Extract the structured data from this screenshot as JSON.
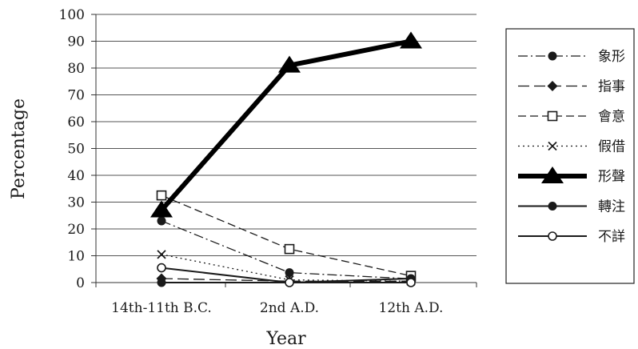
{
  "chart_data": {
    "type": "line",
    "categories": [
      "14th-11th B.C.",
      "2nd A.D.",
      "12th A.D."
    ],
    "xlabel": "Year",
    "ylabel": "Percentage",
    "ylim": [
      0,
      100
    ],
    "yticks": [
      0,
      10,
      20,
      30,
      40,
      50,
      60,
      70,
      80,
      90,
      100
    ],
    "grid": "horizontal",
    "legend_position": "right",
    "series": [
      {
        "name": "象形",
        "values": [
          23,
          3.7,
          1.4
        ],
        "style": "dash-dot",
        "marker": "filled-circle",
        "color": "#1a1a1a"
      },
      {
        "name": "指事",
        "values": [
          1.5,
          0.5,
          0.5
        ],
        "style": "long-dash",
        "marker": "filled-diamond",
        "color": "#1a1a1a"
      },
      {
        "name": "會意",
        "values": [
          32.5,
          12.5,
          2.5
        ],
        "style": "dash",
        "marker": "open-square",
        "color": "#1a1a1a"
      },
      {
        "name": "假借",
        "values": [
          10.5,
          1.0,
          0.5
        ],
        "style": "dotted",
        "marker": "x",
        "color": "#1a1a1a"
      },
      {
        "name": "形聲",
        "values": [
          27,
          81,
          90
        ],
        "style": "thick-solid",
        "marker": "filled-triangle",
        "color": "#000000"
      },
      {
        "name": "轉注",
        "values": [
          0,
          0,
          1.5
        ],
        "style": "solid",
        "marker": "filled-circle",
        "color": "#1a1a1a"
      },
      {
        "name": "不詳",
        "values": [
          5.5,
          0,
          0
        ],
        "style": "solid",
        "marker": "open-circle",
        "color": "#1a1a1a"
      }
    ]
  }
}
